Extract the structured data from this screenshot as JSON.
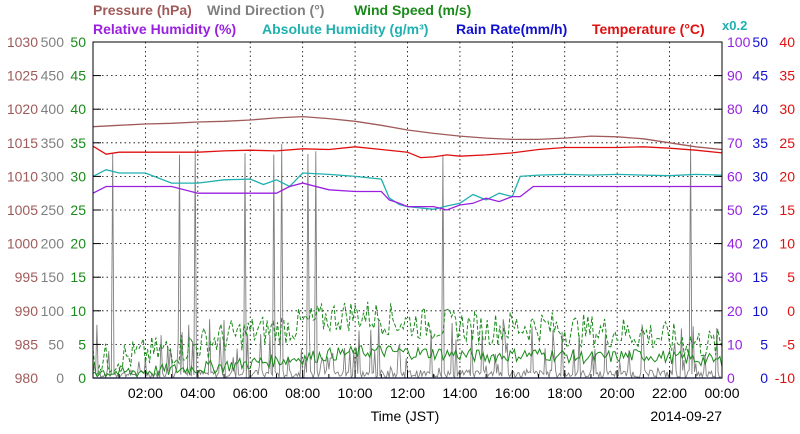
{
  "chart_data": {
    "type": "line",
    "date": "2014-09-27",
    "xlabel": "Time (JST)",
    "x_ticks": [
      "02:00",
      "04:00",
      "06:00",
      "08:00",
      "10:00",
      "12:00",
      "14:00",
      "16:00",
      "18:00",
      "20:00",
      "22:00",
      "00:00"
    ],
    "x_range_hours": [
      0,
      24
    ],
    "grid": true,
    "legend": {
      "row1": [
        {
          "id": "pressure",
          "text": "Pressure (hPa)",
          "color": "#a05a5a"
        },
        {
          "id": "wind_dir",
          "text": "Wind Direction (°)",
          "color": "#808080"
        },
        {
          "id": "wind_speed",
          "text": "Wind Speed (m/s)",
          "color": "#1a8a1a"
        }
      ],
      "row2": [
        {
          "id": "rh",
          "text": "Relative Humidity (%)",
          "color": "#9a20e0"
        },
        {
          "id": "ah",
          "text": "Absolute Humidity (g/m³)",
          "color": "#20b0b0"
        },
        {
          "id": "rain",
          "text": "Rain Rate(mm/h)",
          "color": "#1010d0"
        },
        {
          "id": "temp",
          "text": "Temperature (°C)",
          "color": "#e01010"
        },
        {
          "id": "scale",
          "text": "x0.2",
          "color": "#20b0b0"
        }
      ]
    },
    "axes": {
      "pressure": {
        "side": "left",
        "color": "#a05a5a",
        "range": [
          980,
          1030
        ],
        "ticks": [
          "980",
          "985",
          "990",
          "995",
          "1000",
          "1005",
          "1010",
          "1015",
          "1020",
          "1025",
          "1030"
        ]
      },
      "wind_dir": {
        "side": "left",
        "color": "#808080",
        "range": [
          0,
          500
        ],
        "ticks": [
          "0",
          "50",
          "100",
          "150",
          "200",
          "250",
          "300",
          "350",
          "400",
          "450",
          "500"
        ]
      },
      "wind_speed": {
        "side": "left",
        "color": "#1a8a1a",
        "range": [
          0,
          50
        ],
        "ticks": [
          "0",
          "5",
          "10",
          "15",
          "20",
          "25",
          "30",
          "35",
          "40",
          "45",
          "50"
        ]
      },
      "rh": {
        "side": "right",
        "color": "#9a20e0",
        "range": [
          0,
          100
        ],
        "ticks": [
          "0",
          "10",
          "20",
          "30",
          "40",
          "50",
          "60",
          "70",
          "80",
          "90",
          "100"
        ]
      },
      "rain": {
        "side": "right",
        "color": "#1010d0",
        "range": [
          0,
          50
        ],
        "ticks": [
          "0",
          "5",
          "10",
          "15",
          "20",
          "25",
          "30",
          "35",
          "40",
          "45",
          "50"
        ]
      },
      "temp": {
        "side": "right",
        "color": "#e01010",
        "range": [
          -10,
          40
        ],
        "ticks": [
          "-10",
          "-5",
          "0",
          "5",
          "10",
          "15",
          "20",
          "25",
          "30",
          "35",
          "40"
        ]
      }
    },
    "series": [
      {
        "name": "Pressure (hPa)",
        "axis": "pressure",
        "color": "#a05a5a",
        "style": "solid",
        "x": [
          0,
          1,
          2,
          3,
          4,
          5,
          6,
          7,
          8,
          9,
          10,
          11,
          12,
          13,
          14,
          15,
          16,
          17,
          18,
          19,
          20,
          21,
          22,
          23,
          24
        ],
        "y": [
          1017.4,
          1017.6,
          1017.8,
          1017.9,
          1018.1,
          1018.2,
          1018.4,
          1018.7,
          1018.9,
          1018.6,
          1018.2,
          1017.6,
          1016.9,
          1016.4,
          1016.0,
          1015.7,
          1015.5,
          1015.5,
          1015.7,
          1016.0,
          1015.9,
          1015.6,
          1015.0,
          1014.4,
          1014.0
        ]
      },
      {
        "name": "Temperature (°C)",
        "axis": "temp",
        "color": "#e01010",
        "style": "solid",
        "x": [
          0,
          0.5,
          1,
          2,
          3,
          4,
          5,
          6,
          7,
          8,
          9,
          10,
          11,
          12,
          12.5,
          13,
          13.5,
          14,
          15,
          16,
          17,
          18,
          19,
          20,
          21,
          22,
          23,
          24
        ],
        "y": [
          24.5,
          23.3,
          23.6,
          23.6,
          23.6,
          23.6,
          23.8,
          23.9,
          23.8,
          24.1,
          24.0,
          24.4,
          24.0,
          23.6,
          22.8,
          22.9,
          23.2,
          23.0,
          23.2,
          23.5,
          24.0,
          24.3,
          24.3,
          24.3,
          24.4,
          24.2,
          23.9,
          23.5
        ]
      },
      {
        "name": "Absolute Humidity (g/m³)",
        "axis": "rain",
        "color": "#20b0b0",
        "style": "solid",
        "x": [
          0,
          0.5,
          1,
          2,
          3,
          4,
          5,
          6,
          6.5,
          7,
          7.5,
          8,
          9,
          10,
          11,
          11.3,
          11.7,
          12,
          13,
          13.5,
          14,
          14.5,
          15,
          15.5,
          16,
          16.3,
          17,
          18,
          19,
          20,
          21,
          22,
          23,
          24
        ],
        "y": [
          30,
          31,
          30.5,
          30.5,
          29,
          29,
          29.5,
          29.6,
          28.8,
          29.5,
          28.5,
          30.5,
          30.3,
          30,
          29.6,
          26.8,
          25.8,
          25.5,
          25.1,
          25.6,
          26,
          27.3,
          26.5,
          27.5,
          27,
          30,
          30.2,
          30.3,
          30.2,
          30.3,
          30.2,
          30.1,
          30.3,
          30.2
        ]
      },
      {
        "name": "Relative Humidity (%)",
        "axis": "rh",
        "color": "#9a20e0",
        "style": "solid",
        "x": [
          0,
          0.5,
          1,
          2,
          3,
          4,
          5,
          6,
          7,
          7.5,
          8,
          9,
          10,
          11,
          11.3,
          11.7,
          12,
          13,
          13.5,
          14,
          14.5,
          15,
          15.5,
          16,
          16.3,
          16.8,
          17,
          18,
          19,
          20,
          21,
          22,
          23,
          24
        ],
        "y": [
          55,
          57,
          57,
          57,
          57,
          55,
          55,
          55,
          55,
          57,
          58,
          56,
          55.5,
          55.5,
          53,
          52,
          51,
          51,
          50,
          51.5,
          52,
          53.5,
          52.5,
          54,
          54,
          57,
          57,
          57,
          57,
          57,
          57,
          57,
          57,
          57
        ]
      },
      {
        "name": "Rain Rate(mm/h)",
        "axis": "rain",
        "color": "#1010d0",
        "style": "solid",
        "x": [
          0,
          24
        ],
        "y": [
          0,
          0
        ]
      }
    ],
    "wind_speed_solid_trend": {
      "axis": "wind_speed",
      "x": [
        0,
        1,
        2,
        3,
        4,
        5,
        6,
        7,
        8,
        9,
        10,
        11,
        12,
        13,
        14,
        15,
        16,
        17,
        18,
        19,
        20,
        21,
        22,
        23,
        24
      ],
      "y": [
        1.0,
        0.8,
        1.0,
        1.2,
        1.5,
        1.8,
        2.2,
        2.6,
        3.0,
        3.5,
        3.8,
        4.0,
        3.8,
        3.7,
        3.5,
        3.2,
        3.4,
        3.6,
        3.3,
        3.0,
        3.2,
        3.4,
        3.1,
        2.8,
        2.5
      ]
    },
    "wind_speed_gust_trend": {
      "axis": "wind_speed",
      "x": [
        0,
        1,
        2,
        3,
        4,
        5,
        6,
        7,
        8,
        9,
        10,
        11,
        12,
        13,
        14,
        15,
        16,
        17,
        18,
        19,
        20,
        21,
        22,
        23,
        24
      ],
      "y": [
        2.5,
        3.0,
        3.5,
        4.2,
        5.0,
        6.0,
        6.8,
        7.2,
        8.0,
        9.0,
        9.5,
        9.0,
        8.2,
        8.0,
        7.8,
        7.2,
        7.6,
        7.8,
        7.2,
        7.0,
        6.8,
        6.6,
        5.8,
        5.2,
        4.8
      ]
    },
    "wind_direction_spikes_hours": [
      0.75,
      3.3,
      3.9,
      5.8,
      6.9,
      7.2,
      8.2,
      8.5,
      13.35,
      22.8
    ]
  }
}
